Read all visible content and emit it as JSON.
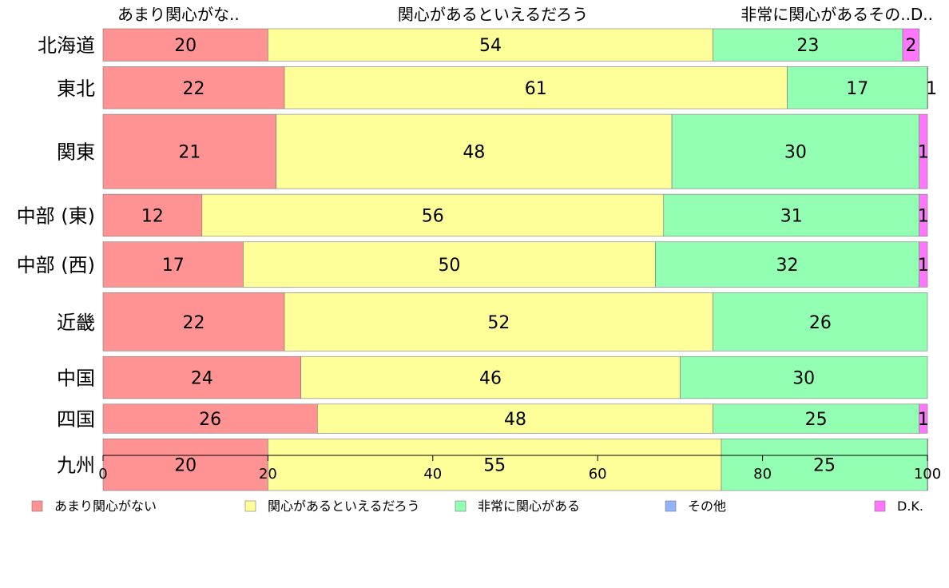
{
  "chart_data": {
    "type": "bar",
    "orientation": "horizontal",
    "stacked": true,
    "categories": [
      "北海道",
      "東北",
      "関東",
      "中部 (東)",
      "中部 (西)",
      "近畿",
      "中国",
      "四国",
      "九州"
    ],
    "series": [
      {
        "name": "あまり関心がない",
        "color": "#ff9393",
        "values": [
          20,
          22,
          21,
          12,
          17,
          22,
          24,
          26,
          20
        ]
      },
      {
        "name": "関心があるといえるだろう",
        "color": "#ffff99",
        "values": [
          54,
          61,
          48,
          56,
          50,
          52,
          46,
          48,
          55
        ]
      },
      {
        "name": "非常に関心がある",
        "color": "#93ffb3",
        "values": [
          23,
          17,
          30,
          31,
          32,
          26,
          30,
          25,
          25
        ]
      },
      {
        "name": "その他",
        "color": "#93b3ff",
        "values": [
          0,
          1,
          0,
          0,
          0,
          0,
          0,
          0,
          0
        ]
      },
      {
        "name": "D.K.",
        "color": "#ff77ff",
        "values": [
          2,
          0,
          1,
          1,
          1,
          0,
          0,
          1,
          0.5
        ]
      }
    ],
    "segment_labels": [
      [
        "20",
        "54",
        "23",
        "",
        "2"
      ],
      [
        "22",
        "61",
        "17",
        "1",
        ""
      ],
      [
        "21",
        "48",
        "30",
        "",
        "1"
      ],
      [
        "12",
        "56",
        "31",
        "",
        "1"
      ],
      [
        "17",
        "50",
        "32",
        "",
        "1"
      ],
      [
        "22",
        "52",
        "26",
        "",
        ""
      ],
      [
        "24",
        "46",
        "30",
        "",
        ""
      ],
      [
        "26",
        "48",
        "25",
        "",
        "1"
      ],
      [
        "20",
        "55",
        "25",
        "",
        ""
      ]
    ],
    "row_weights": [
      1.0,
      1.3,
      2.3,
      1.3,
      1.4,
      1.8,
      1.3,
      0.9,
      1.6
    ],
    "top_labels": [
      "あまり関心がな..",
      "関心があるといえるだろう",
      "非常に関心があるその..",
      "D.."
    ],
    "xlim": [
      0,
      100
    ],
    "xticks": [
      0,
      20,
      40,
      60,
      80,
      100
    ],
    "legend_position": "bottom",
    "grid": false
  }
}
